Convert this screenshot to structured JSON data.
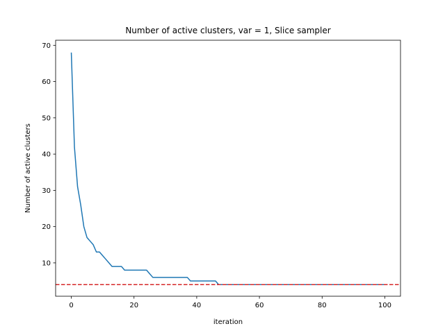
{
  "chart_data": {
    "type": "line",
    "title": "Number of active clusters, var = 1, Slice sampler",
    "xlabel": "iteration",
    "ylabel": "Number of active clusters",
    "xlim": [
      -5,
      105
    ],
    "ylim": [
      0.8,
      71.4
    ],
    "xticks": [
      0,
      20,
      40,
      60,
      80,
      100
    ],
    "yticks": [
      10,
      20,
      30,
      40,
      50,
      60,
      70
    ],
    "grid": false,
    "series": [
      {
        "color": "#1f77b4",
        "x": [
          0,
          1,
          2,
          3,
          4,
          5,
          6,
          7,
          8,
          9,
          10,
          11,
          12,
          13,
          14,
          15,
          16,
          17,
          18,
          19,
          20,
          21,
          22,
          23,
          24,
          25,
          26,
          27,
          28,
          29,
          30,
          31,
          32,
          33,
          34,
          35,
          36,
          37,
          38,
          39,
          40,
          41,
          42,
          43,
          44,
          45,
          46,
          47,
          48,
          49,
          50,
          51,
          52,
          53,
          54,
          55,
          56,
          57,
          58,
          59,
          60,
          61,
          62,
          63,
          64,
          65,
          66,
          67,
          68,
          69,
          70,
          71,
          72,
          73,
          74,
          75,
          76,
          77,
          78,
          79,
          80,
          81,
          82,
          83,
          84,
          85,
          86,
          87,
          88,
          89,
          90,
          91,
          92,
          93,
          94,
          95,
          96,
          97,
          98,
          99,
          100
        ],
        "y": [
          68,
          42,
          31,
          26,
          20,
          17,
          16,
          15,
          13,
          13,
          12,
          11,
          10,
          9,
          9,
          9,
          9,
          8,
          8,
          8,
          8,
          8,
          8,
          8,
          8,
          7,
          6,
          6,
          6,
          6,
          6,
          6,
          6,
          6,
          6,
          6,
          6,
          6,
          5,
          5,
          5,
          5,
          5,
          5,
          5,
          5,
          5,
          4,
          4,
          4,
          4,
          4,
          4,
          4,
          4,
          4,
          4,
          4,
          4,
          4,
          4,
          4,
          4,
          4,
          4,
          4,
          4,
          4,
          4,
          4,
          4,
          4,
          4,
          4,
          4,
          4,
          4,
          4,
          4,
          4,
          4,
          4,
          4,
          4,
          4,
          4,
          4,
          4,
          4,
          4,
          4,
          4,
          4,
          4,
          4,
          4,
          4,
          4,
          4,
          4,
          4
        ]
      }
    ],
    "reference_line": {
      "y": 4,
      "color": "#d62728",
      "style": "dashed"
    }
  }
}
